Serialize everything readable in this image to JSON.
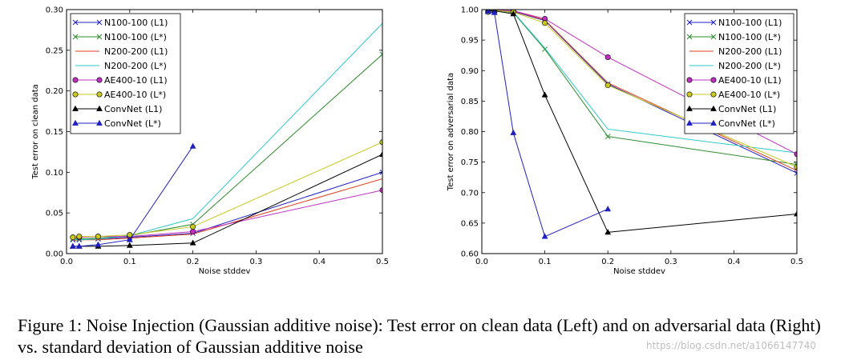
{
  "chart_data": [
    {
      "type": "line",
      "xlabel": "Noise stddev",
      "ylabel": "Test error on clean data",
      "xlim": [
        0.0,
        0.5
      ],
      "ylim": [
        0.0,
        0.3
      ],
      "xticks": [
        "0.0",
        "0.1",
        "0.2",
        "0.3",
        "0.4",
        "0.5"
      ],
      "yticks": [
        "0.00",
        "0.05",
        "0.10",
        "0.15",
        "0.20",
        "0.25",
        "0.30"
      ],
      "legend_position": "top-left",
      "series": [
        {
          "name": "N100-100 (L1)",
          "color": "#2020c0",
          "marker": "x",
          "x": [
            0.01,
            0.02,
            0.05,
            0.1,
            0.2,
            0.5
          ],
          "y": [
            0.017,
            0.017,
            0.018,
            0.02,
            0.025,
            0.1
          ]
        },
        {
          "name": "N100-100 (L*)",
          "color": "#2e8b2e",
          "marker": "x",
          "x": [
            0.01,
            0.02,
            0.05,
            0.1,
            0.2,
            0.5
          ],
          "y": [
            0.018,
            0.018,
            0.019,
            0.022,
            0.036,
            0.245
          ]
        },
        {
          "name": "N200-200 (L1)",
          "color": "#e04020",
          "marker": "none",
          "x": [
            0.01,
            0.02,
            0.05,
            0.1,
            0.2,
            0.5
          ],
          "y": [
            0.016,
            0.017,
            0.017,
            0.019,
            0.024,
            0.092
          ]
        },
        {
          "name": "N200-200 (L*)",
          "color": "#30c8c8",
          "marker": "none",
          "x": [
            0.01,
            0.02,
            0.05,
            0.1,
            0.2,
            0.5
          ],
          "y": [
            0.017,
            0.017,
            0.018,
            0.022,
            0.043,
            0.283
          ]
        },
        {
          "name": "AE400-10 (L1)",
          "color": "#c030c0",
          "marker": "o",
          "x": [
            0.01,
            0.02,
            0.05,
            0.1,
            0.2,
            0.5
          ],
          "y": [
            0.02,
            0.02,
            0.021,
            0.021,
            0.027,
            0.078
          ]
        },
        {
          "name": "AE400-10 (L*)",
          "color": "#c8c820",
          "marker": "o",
          "x": [
            0.01,
            0.02,
            0.05,
            0.1,
            0.2,
            0.5
          ],
          "y": [
            0.02,
            0.021,
            0.021,
            0.023,
            0.033,
            0.137
          ]
        },
        {
          "name": "ConvNet (L1)",
          "color": "#000000",
          "marker": "^",
          "x": [
            0.01,
            0.02,
            0.05,
            0.1,
            0.2,
            0.5
          ],
          "y": [
            0.009,
            0.009,
            0.009,
            0.01,
            0.013,
            0.122
          ]
        },
        {
          "name": "ConvNet (L*)",
          "color": "#2020c0",
          "marker": "^",
          "x": [
            0.01,
            0.02,
            0.05,
            0.1,
            0.2
          ],
          "y": [
            0.009,
            0.009,
            0.011,
            0.017,
            0.132
          ]
        }
      ]
    },
    {
      "type": "line",
      "xlabel": "Noise stddev",
      "ylabel": "Test error on adversarial data",
      "xlim": [
        0.0,
        0.5
      ],
      "ylim": [
        0.6,
        1.0
      ],
      "xticks": [
        "0.0",
        "0.1",
        "0.2",
        "0.3",
        "0.4",
        "0.5"
      ],
      "yticks": [
        "0.60",
        "0.65",
        "0.70",
        "0.75",
        "0.80",
        "0.85",
        "0.90",
        "0.95",
        "1.00"
      ],
      "legend_position": "top-right",
      "series": [
        {
          "name": "N100-100 (L1)",
          "color": "#2020c0",
          "marker": "x",
          "x": [
            0.01,
            0.02,
            0.05,
            0.1,
            0.2,
            0.5
          ],
          "y": [
            0.997,
            0.999,
            0.997,
            0.982,
            0.878,
            0.732
          ]
        },
        {
          "name": "N100-100 (L*)",
          "color": "#2e8b2e",
          "marker": "x",
          "x": [
            0.01,
            0.02,
            0.05,
            0.1,
            0.2,
            0.5
          ],
          "y": [
            0.997,
            0.999,
            0.995,
            0.935,
            0.792,
            0.746
          ]
        },
        {
          "name": "N200-200 (L1)",
          "color": "#e04020",
          "marker": "none",
          "x": [
            0.01,
            0.02,
            0.05,
            0.1,
            0.2,
            0.5
          ],
          "y": [
            0.998,
            0.999,
            0.998,
            0.983,
            0.88,
            0.736
          ]
        },
        {
          "name": "N200-200 (L*)",
          "color": "#30c8c8",
          "marker": "none",
          "x": [
            0.01,
            0.02,
            0.05,
            0.1,
            0.2,
            0.5
          ],
          "y": [
            0.998,
            0.999,
            0.996,
            0.937,
            0.804,
            0.765
          ]
        },
        {
          "name": "AE400-10 (L1)",
          "color": "#c030c0",
          "marker": "o",
          "x": [
            0.01,
            0.02,
            0.05,
            0.1,
            0.2,
            0.5
          ],
          "y": [
            0.997,
            0.999,
            0.998,
            0.985,
            0.922,
            0.763
          ]
        },
        {
          "name": "AE400-10 (L*)",
          "color": "#c8c820",
          "marker": "o",
          "x": [
            0.01,
            0.02,
            0.05,
            0.1,
            0.2,
            0.5
          ],
          "y": [
            0.996,
            0.999,
            0.996,
            0.978,
            0.876,
            0.742
          ]
        },
        {
          "name": "ConvNet (L1)",
          "color": "#000000",
          "marker": "^",
          "x": [
            0.01,
            0.02,
            0.05,
            0.1,
            0.2,
            0.5
          ],
          "y": [
            0.998,
            0.998,
            0.993,
            0.86,
            0.635,
            0.665
          ]
        },
        {
          "name": "ConvNet (L*)",
          "color": "#2020c0",
          "marker": "^",
          "x": [
            0.01,
            0.02,
            0.05,
            0.1,
            0.2
          ],
          "y": [
            0.997,
            0.995,
            0.798,
            0.628,
            0.673
          ]
        }
      ]
    }
  ],
  "caption": "Figure 1: Noise Injection (Gaussian additive noise): Test error on clean data (Left) and on adversarial data (Right) vs. standard deviation of Gaussian additive noise",
  "watermark": "https://blog.csdn.net/a1066147740"
}
